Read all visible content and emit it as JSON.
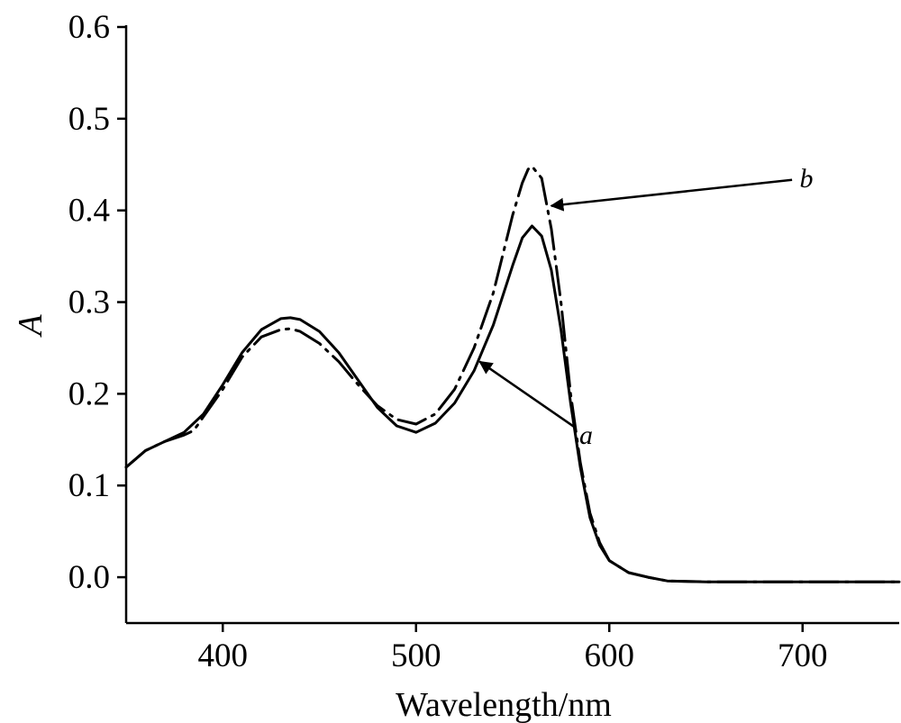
{
  "chart_data": {
    "type": "line",
    "title": "",
    "xlabel": "Wavelength/nm",
    "ylabel": "A",
    "xlim": [
      350,
      750
    ],
    "ylim": [
      -0.05,
      0.6
    ],
    "xticks": [
      400,
      500,
      600,
      700
    ],
    "yticks": [
      0.0,
      0.1,
      0.2,
      0.3,
      0.4,
      0.5,
      0.6
    ],
    "xtick_labels": [
      "400",
      "500",
      "600",
      "700"
    ],
    "ytick_labels": [
      "0.0",
      "0.1",
      "0.2",
      "0.3",
      "0.4",
      "0.5",
      "0.6"
    ],
    "grid": false,
    "legend": "none",
    "series": [
      {
        "label": "a",
        "style": "solid",
        "x": [
          350,
          360,
          370,
          380,
          390,
          400,
          410,
          420,
          430,
          435,
          440,
          450,
          460,
          470,
          480,
          490,
          500,
          510,
          520,
          530,
          540,
          550,
          555,
          560,
          565,
          570,
          575,
          580,
          585,
          590,
          595,
          600,
          610,
          620,
          630,
          650,
          700,
          750
        ],
        "y": [
          0.12,
          0.138,
          0.148,
          0.158,
          0.178,
          0.21,
          0.245,
          0.27,
          0.282,
          0.283,
          0.281,
          0.268,
          0.245,
          0.215,
          0.185,
          0.165,
          0.158,
          0.168,
          0.19,
          0.225,
          0.275,
          0.34,
          0.37,
          0.383,
          0.372,
          0.335,
          0.27,
          0.19,
          0.12,
          0.065,
          0.035,
          0.018,
          0.005,
          0.0,
          -0.004,
          -0.005,
          -0.005,
          -0.005
        ]
      },
      {
        "label": "b",
        "style": "dash-dot",
        "x": [
          350,
          360,
          370,
          380,
          385,
          390,
          400,
          410,
          420,
          430,
          435,
          440,
          450,
          460,
          470,
          480,
          490,
          500,
          510,
          520,
          530,
          540,
          550,
          555,
          558,
          560,
          565,
          570,
          575,
          580,
          585,
          590,
          595,
          600,
          610,
          620,
          630,
          650,
          700,
          750
        ],
        "y": [
          0.12,
          0.138,
          0.148,
          0.155,
          0.16,
          0.175,
          0.205,
          0.24,
          0.262,
          0.27,
          0.271,
          0.268,
          0.255,
          0.235,
          0.21,
          0.187,
          0.172,
          0.167,
          0.178,
          0.205,
          0.25,
          0.31,
          0.395,
          0.43,
          0.445,
          0.448,
          0.435,
          0.38,
          0.3,
          0.2,
          0.125,
          0.07,
          0.038,
          0.018,
          0.005,
          0.0,
          -0.004,
          -0.005,
          -0.005,
          -0.005
        ]
      }
    ],
    "annotations": [
      {
        "text": "a",
        "target_x": 533,
        "target_y": 0.235,
        "text_x": 588,
        "text_y": 0.155
      },
      {
        "text": "b",
        "target_x": 570,
        "target_y": 0.405,
        "text_x": 702,
        "text_y": 0.435
      }
    ]
  }
}
